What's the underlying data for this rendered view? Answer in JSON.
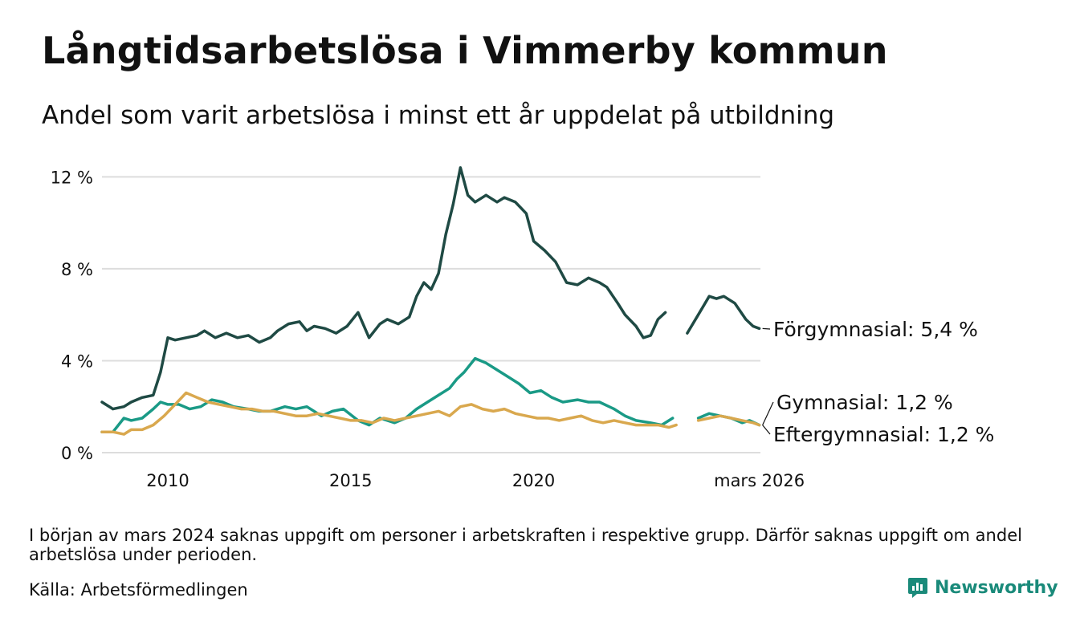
{
  "title": "Långtidsarbetslösa i Vimmerby kommun",
  "subtitle": "Andel som varit arbetslösa i minst ett år uppdelat på utbildning",
  "note": "I början av mars 2024 saknas uppgift om personer i arbetskraften i respektive grupp. Därför saknas uppgift om andel arbetslösa under perioden.",
  "source": "Källa: Arbetsförmedlingen",
  "brand": "Newsworthy",
  "colors": {
    "forgymnasial": "#1f4a44",
    "gymnasial": "#1a9a86",
    "eftergymnasial": "#d9a84e",
    "grid": "#dddddd",
    "brand": "#1a8a7a"
  },
  "chart_data": {
    "type": "line",
    "x_unit": "decimal year",
    "xlim": [
      2008.2,
      2026.2
    ],
    "ylim": [
      0,
      12.5
    ],
    "y_ticks": [
      0,
      4,
      8,
      12
    ],
    "y_tick_labels": [
      "0 %",
      "4 %",
      "8 %",
      "12 %"
    ],
    "x_ticks": [
      2010,
      2015,
      2020,
      2026.17
    ],
    "x_tick_labels": [
      "2010",
      "2015",
      "2020",
      "mars 2026"
    ],
    "gap": [
      2024.0,
      2024.2
    ],
    "series": [
      {
        "name": "Förgymnasial",
        "label": "Förgymnasial: 5,4 %",
        "color": "#1f4a44",
        "x": [
          2008.2,
          2008.5,
          2008.8,
          2009.0,
          2009.3,
          2009.6,
          2009.8,
          2010.0,
          2010.2,
          2010.5,
          2010.8,
          2011.0,
          2011.3,
          2011.6,
          2011.9,
          2012.2,
          2012.5,
          2012.8,
          2013.0,
          2013.3,
          2013.6,
          2013.8,
          2014.0,
          2014.3,
          2014.6,
          2014.9,
          2015.2,
          2015.5,
          2015.8,
          2016.0,
          2016.3,
          2016.6,
          2016.8,
          2017.0,
          2017.2,
          2017.4,
          2017.6,
          2017.8,
          2018.0,
          2018.2,
          2018.4,
          2018.7,
          2019.0,
          2019.2,
          2019.5,
          2019.8,
          2020.0,
          2020.3,
          2020.6,
          2020.9,
          2021.2,
          2021.5,
          2021.8,
          2022.0,
          2022.3,
          2022.5,
          2022.8,
          2023.0,
          2023.2,
          2023.4,
          2023.6,
          2023.9,
          2024.2,
          2024.5,
          2024.8,
          2025.0,
          2025.2,
          2025.5,
          2025.8,
          2026.0,
          2026.17
        ],
        "y": [
          2.2,
          1.9,
          2.0,
          2.2,
          2.4,
          2.5,
          3.5,
          5.0,
          4.9,
          5.0,
          5.1,
          5.3,
          5.0,
          5.2,
          5.0,
          5.1,
          4.8,
          5.0,
          5.3,
          5.6,
          5.7,
          5.3,
          5.5,
          5.4,
          5.2,
          5.5,
          6.1,
          5.0,
          5.6,
          5.8,
          5.6,
          5.9,
          6.8,
          7.4,
          7.1,
          7.8,
          9.5,
          10.8,
          12.4,
          11.2,
          10.9,
          11.2,
          10.9,
          11.1,
          10.9,
          10.4,
          9.2,
          8.8,
          8.3,
          7.4,
          7.3,
          7.6,
          7.4,
          7.2,
          6.5,
          6.0,
          5.5,
          5.0,
          5.1,
          5.8,
          6.1,
          null,
          5.2,
          6.0,
          6.8,
          6.7,
          6.8,
          6.5,
          5.8,
          5.5,
          5.4
        ]
      },
      {
        "name": "Gymnasial",
        "label": "Gymnasial: 1,2 %",
        "color": "#1a9a86",
        "x": [
          2008.2,
          2008.5,
          2008.8,
          2009.0,
          2009.3,
          2009.6,
          2009.8,
          2010.0,
          2010.3,
          2010.6,
          2010.9,
          2011.2,
          2011.5,
          2011.8,
          2012.2,
          2012.5,
          2012.8,
          2013.2,
          2013.5,
          2013.8,
          2014.2,
          2014.5,
          2014.8,
          2015.2,
          2015.5,
          2015.8,
          2016.2,
          2016.5,
          2016.8,
          2017.1,
          2017.4,
          2017.7,
          2017.9,
          2018.1,
          2018.4,
          2018.7,
          2019.0,
          2019.3,
          2019.6,
          2019.9,
          2020.2,
          2020.5,
          2020.8,
          2021.2,
          2021.5,
          2021.8,
          2022.2,
          2022.5,
          2022.8,
          2023.2,
          2023.5,
          2023.8,
          2024.2,
          2024.5,
          2024.8,
          2025.1,
          2025.4,
          2025.7,
          2025.9,
          2026.17
        ],
        "y": [
          0.9,
          0.9,
          1.5,
          1.4,
          1.5,
          1.9,
          2.2,
          2.1,
          2.1,
          1.9,
          2.0,
          2.3,
          2.2,
          2.0,
          1.9,
          1.8,
          1.8,
          2.0,
          1.9,
          2.0,
          1.6,
          1.8,
          1.9,
          1.4,
          1.2,
          1.5,
          1.3,
          1.5,
          1.9,
          2.2,
          2.5,
          2.8,
          3.2,
          3.5,
          4.1,
          3.9,
          3.6,
          3.3,
          3.0,
          2.6,
          2.7,
          2.4,
          2.2,
          2.3,
          2.2,
          2.2,
          1.9,
          1.6,
          1.4,
          1.3,
          1.2,
          1.5,
          null,
          1.5,
          1.7,
          1.6,
          1.5,
          1.3,
          1.4,
          1.2
        ]
      },
      {
        "name": "Eftergymnasial",
        "label": "Eftergymnasial: 1,2 %",
        "color": "#d9a84e",
        "x": [
          2008.2,
          2008.5,
          2008.8,
          2009.0,
          2009.3,
          2009.6,
          2009.9,
          2010.2,
          2010.5,
          2010.8,
          2011.1,
          2011.4,
          2011.7,
          2012.0,
          2012.3,
          2012.6,
          2012.9,
          2013.2,
          2013.5,
          2013.8,
          2014.1,
          2014.4,
          2014.7,
          2015.0,
          2015.3,
          2015.6,
          2015.9,
          2016.2,
          2016.5,
          2016.8,
          2017.1,
          2017.4,
          2017.7,
          2018.0,
          2018.3,
          2018.6,
          2018.9,
          2019.2,
          2019.5,
          2019.8,
          2020.1,
          2020.4,
          2020.7,
          2021.0,
          2021.3,
          2021.6,
          2021.9,
          2022.2,
          2022.5,
          2022.8,
          2023.1,
          2023.4,
          2023.7,
          2023.9,
          2024.2,
          2024.5,
          2024.8,
          2025.1,
          2025.4,
          2025.7,
          2026.0,
          2026.17
        ],
        "y": [
          0.9,
          0.9,
          0.8,
          1.0,
          1.0,
          1.2,
          1.6,
          2.1,
          2.6,
          2.4,
          2.2,
          2.1,
          2.0,
          1.9,
          1.9,
          1.8,
          1.8,
          1.7,
          1.6,
          1.6,
          1.7,
          1.6,
          1.5,
          1.4,
          1.4,
          1.3,
          1.5,
          1.4,
          1.5,
          1.6,
          1.7,
          1.8,
          1.6,
          2.0,
          2.1,
          1.9,
          1.8,
          1.9,
          1.7,
          1.6,
          1.5,
          1.5,
          1.4,
          1.5,
          1.6,
          1.4,
          1.3,
          1.4,
          1.3,
          1.2,
          1.2,
          1.2,
          1.1,
          1.2,
          null,
          1.4,
          1.5,
          1.6,
          1.5,
          1.4,
          1.3,
          1.2
        ]
      }
    ]
  }
}
